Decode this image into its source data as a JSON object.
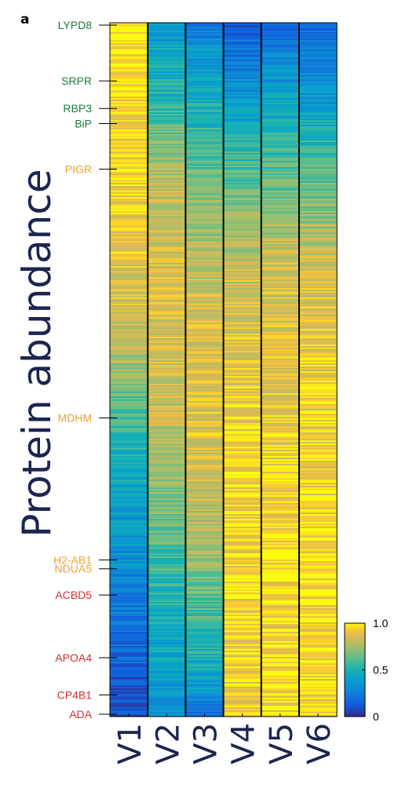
{
  "panel_letter": "a",
  "chart_data": {
    "type": "heatmap",
    "title": "",
    "ylabel": "Protein abundance",
    "columns": [
      "V1",
      "V2",
      "V3",
      "V4",
      "V5",
      "V6"
    ],
    "value_range": [
      0,
      1
    ],
    "colormap": "parula",
    "colorbar": {
      "ticks": [
        1.0,
        0.5,
        0
      ],
      "tick_labels": [
        "1.0",
        "0.5",
        "0"
      ],
      "placement": "bottom-right"
    },
    "row_ordering": "sorted by V1 abundance, high at top to low at bottom",
    "highlighted_proteins": [
      {
        "name": "LYPD8",
        "row_fraction": 0.0,
        "color": "#1a7a3c"
      },
      {
        "name": "SRPR",
        "row_fraction": 0.081,
        "color": "#1a7a3c"
      },
      {
        "name": "RBP3",
        "row_fraction": 0.121,
        "color": "#1a7a3c"
      },
      {
        "name": "BiP",
        "row_fraction": 0.143,
        "color": "#1a7a3c"
      },
      {
        "name": "PIGR",
        "row_fraction": 0.209,
        "color": "#f0a030"
      },
      {
        "name": "MDHM",
        "row_fraction": 0.57,
        "color": "#f0a030"
      },
      {
        "name": "H2-AB1",
        "row_fraction": 0.776,
        "color": "#f0a030"
      },
      {
        "name": "NDUA5",
        "row_fraction": 0.789,
        "color": "#f0a030"
      },
      {
        "name": "ACBD5",
        "row_fraction": 0.827,
        "color": "#d03030"
      },
      {
        "name": "APOA4",
        "row_fraction": 0.918,
        "color": "#d03030"
      },
      {
        "name": "CP4B1",
        "row_fraction": 0.972,
        "color": "#d03030"
      },
      {
        "name": "ADA",
        "row_fraction": 1.0,
        "color": "#d03030"
      }
    ],
    "column_profiles": {
      "V1": [
        [
          0.0,
          0.97
        ],
        [
          0.28,
          0.92
        ],
        [
          0.45,
          0.82
        ],
        [
          0.55,
          0.62
        ],
        [
          0.65,
          0.45
        ],
        [
          0.8,
          0.3
        ],
        [
          0.9,
          0.18
        ],
        [
          1.0,
          0.05
        ]
      ],
      "V2": [
        [
          0.0,
          0.38
        ],
        [
          0.1,
          0.52
        ],
        [
          0.22,
          0.78
        ],
        [
          0.4,
          0.86
        ],
        [
          0.6,
          0.8
        ],
        [
          0.75,
          0.62
        ],
        [
          0.88,
          0.45
        ],
        [
          1.0,
          0.35
        ]
      ],
      "V3": [
        [
          0.0,
          0.25
        ],
        [
          0.12,
          0.48
        ],
        [
          0.25,
          0.7
        ],
        [
          0.4,
          0.84
        ],
        [
          0.6,
          0.88
        ],
        [
          0.78,
          0.72
        ],
        [
          0.92,
          0.48
        ],
        [
          1.0,
          0.2
        ]
      ],
      "V4": [
        [
          0.0,
          0.12
        ],
        [
          0.1,
          0.35
        ],
        [
          0.2,
          0.58
        ],
        [
          0.35,
          0.82
        ],
        [
          0.55,
          0.92
        ],
        [
          0.78,
          0.95
        ],
        [
          1.0,
          0.92
        ]
      ],
      "V5": [
        [
          0.0,
          0.18
        ],
        [
          0.1,
          0.4
        ],
        [
          0.2,
          0.6
        ],
        [
          0.35,
          0.84
        ],
        [
          0.55,
          0.9
        ],
        [
          0.78,
          0.96
        ],
        [
          1.0,
          0.94
        ]
      ],
      "V6": [
        [
          0.0,
          0.16
        ],
        [
          0.1,
          0.36
        ],
        [
          0.2,
          0.58
        ],
        [
          0.35,
          0.84
        ],
        [
          0.55,
          0.92
        ],
        [
          0.78,
          0.95
        ],
        [
          1.0,
          0.93
        ]
      ]
    },
    "noise": 0.1
  }
}
